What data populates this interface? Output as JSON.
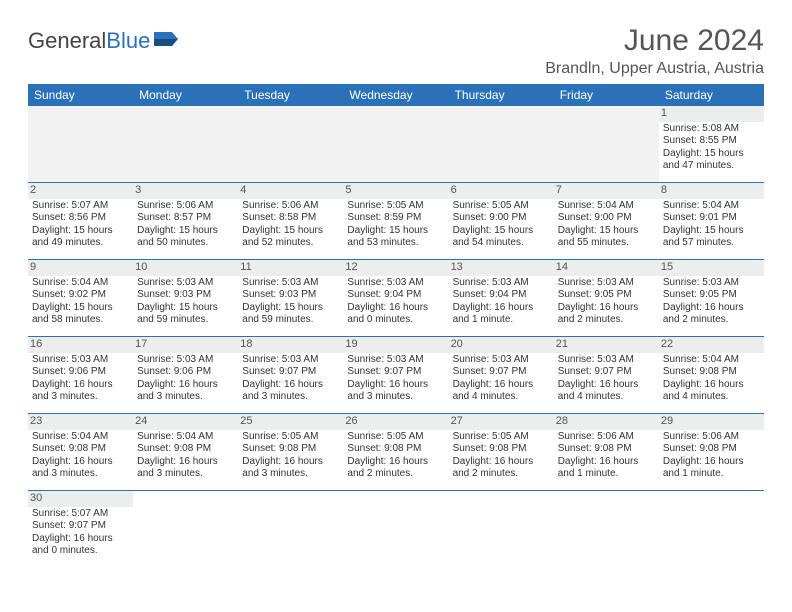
{
  "brand": {
    "part1": "General",
    "part2": "Blue"
  },
  "title": "June 2024",
  "location": "Brandln, Upper Austria, Austria",
  "weekdays": [
    "Sunday",
    "Monday",
    "Tuesday",
    "Wednesday",
    "Thursday",
    "Friday",
    "Saturday"
  ],
  "colors": {
    "header_bg": "#2a71b8",
    "header_fg": "#ffffff",
    "daynum_bg": "#eceded",
    "border": "#2a71b8"
  },
  "rows": [
    [
      null,
      null,
      null,
      null,
      null,
      null,
      {
        "day": "1",
        "sunrise": "Sunrise: 5:08 AM",
        "sunset": "Sunset: 8:55 PM",
        "daylight": "Daylight: 15 hours and 47 minutes."
      }
    ],
    [
      {
        "day": "2",
        "sunrise": "Sunrise: 5:07 AM",
        "sunset": "Sunset: 8:56 PM",
        "daylight": "Daylight: 15 hours and 49 minutes."
      },
      {
        "day": "3",
        "sunrise": "Sunrise: 5:06 AM",
        "sunset": "Sunset: 8:57 PM",
        "daylight": "Daylight: 15 hours and 50 minutes."
      },
      {
        "day": "4",
        "sunrise": "Sunrise: 5:06 AM",
        "sunset": "Sunset: 8:58 PM",
        "daylight": "Daylight: 15 hours and 52 minutes."
      },
      {
        "day": "5",
        "sunrise": "Sunrise: 5:05 AM",
        "sunset": "Sunset: 8:59 PM",
        "daylight": "Daylight: 15 hours and 53 minutes."
      },
      {
        "day": "6",
        "sunrise": "Sunrise: 5:05 AM",
        "sunset": "Sunset: 9:00 PM",
        "daylight": "Daylight: 15 hours and 54 minutes."
      },
      {
        "day": "7",
        "sunrise": "Sunrise: 5:04 AM",
        "sunset": "Sunset: 9:00 PM",
        "daylight": "Daylight: 15 hours and 55 minutes."
      },
      {
        "day": "8",
        "sunrise": "Sunrise: 5:04 AM",
        "sunset": "Sunset: 9:01 PM",
        "daylight": "Daylight: 15 hours and 57 minutes."
      }
    ],
    [
      {
        "day": "9",
        "sunrise": "Sunrise: 5:04 AM",
        "sunset": "Sunset: 9:02 PM",
        "daylight": "Daylight: 15 hours and 58 minutes."
      },
      {
        "day": "10",
        "sunrise": "Sunrise: 5:03 AM",
        "sunset": "Sunset: 9:03 PM",
        "daylight": "Daylight: 15 hours and 59 minutes."
      },
      {
        "day": "11",
        "sunrise": "Sunrise: 5:03 AM",
        "sunset": "Sunset: 9:03 PM",
        "daylight": "Daylight: 15 hours and 59 minutes."
      },
      {
        "day": "12",
        "sunrise": "Sunrise: 5:03 AM",
        "sunset": "Sunset: 9:04 PM",
        "daylight": "Daylight: 16 hours and 0 minutes."
      },
      {
        "day": "13",
        "sunrise": "Sunrise: 5:03 AM",
        "sunset": "Sunset: 9:04 PM",
        "daylight": "Daylight: 16 hours and 1 minute."
      },
      {
        "day": "14",
        "sunrise": "Sunrise: 5:03 AM",
        "sunset": "Sunset: 9:05 PM",
        "daylight": "Daylight: 16 hours and 2 minutes."
      },
      {
        "day": "15",
        "sunrise": "Sunrise: 5:03 AM",
        "sunset": "Sunset: 9:05 PM",
        "daylight": "Daylight: 16 hours and 2 minutes."
      }
    ],
    [
      {
        "day": "16",
        "sunrise": "Sunrise: 5:03 AM",
        "sunset": "Sunset: 9:06 PM",
        "daylight": "Daylight: 16 hours and 3 minutes."
      },
      {
        "day": "17",
        "sunrise": "Sunrise: 5:03 AM",
        "sunset": "Sunset: 9:06 PM",
        "daylight": "Daylight: 16 hours and 3 minutes."
      },
      {
        "day": "18",
        "sunrise": "Sunrise: 5:03 AM",
        "sunset": "Sunset: 9:07 PM",
        "daylight": "Daylight: 16 hours and 3 minutes."
      },
      {
        "day": "19",
        "sunrise": "Sunrise: 5:03 AM",
        "sunset": "Sunset: 9:07 PM",
        "daylight": "Daylight: 16 hours and 3 minutes."
      },
      {
        "day": "20",
        "sunrise": "Sunrise: 5:03 AM",
        "sunset": "Sunset: 9:07 PM",
        "daylight": "Daylight: 16 hours and 4 minutes."
      },
      {
        "day": "21",
        "sunrise": "Sunrise: 5:03 AM",
        "sunset": "Sunset: 9:07 PM",
        "daylight": "Daylight: 16 hours and 4 minutes."
      },
      {
        "day": "22",
        "sunrise": "Sunrise: 5:04 AM",
        "sunset": "Sunset: 9:08 PM",
        "daylight": "Daylight: 16 hours and 4 minutes."
      }
    ],
    [
      {
        "day": "23",
        "sunrise": "Sunrise: 5:04 AM",
        "sunset": "Sunset: 9:08 PM",
        "daylight": "Daylight: 16 hours and 3 minutes."
      },
      {
        "day": "24",
        "sunrise": "Sunrise: 5:04 AM",
        "sunset": "Sunset: 9:08 PM",
        "daylight": "Daylight: 16 hours and 3 minutes."
      },
      {
        "day": "25",
        "sunrise": "Sunrise: 5:05 AM",
        "sunset": "Sunset: 9:08 PM",
        "daylight": "Daylight: 16 hours and 3 minutes."
      },
      {
        "day": "26",
        "sunrise": "Sunrise: 5:05 AM",
        "sunset": "Sunset: 9:08 PM",
        "daylight": "Daylight: 16 hours and 2 minutes."
      },
      {
        "day": "27",
        "sunrise": "Sunrise: 5:05 AM",
        "sunset": "Sunset: 9:08 PM",
        "daylight": "Daylight: 16 hours and 2 minutes."
      },
      {
        "day": "28",
        "sunrise": "Sunrise: 5:06 AM",
        "sunset": "Sunset: 9:08 PM",
        "daylight": "Daylight: 16 hours and 1 minute."
      },
      {
        "day": "29",
        "sunrise": "Sunrise: 5:06 AM",
        "sunset": "Sunset: 9:08 PM",
        "daylight": "Daylight: 16 hours and 1 minute."
      }
    ],
    [
      {
        "day": "30",
        "sunrise": "Sunrise: 5:07 AM",
        "sunset": "Sunset: 9:07 PM",
        "daylight": "Daylight: 16 hours and 0 minutes."
      },
      null,
      null,
      null,
      null,
      null,
      null
    ]
  ]
}
